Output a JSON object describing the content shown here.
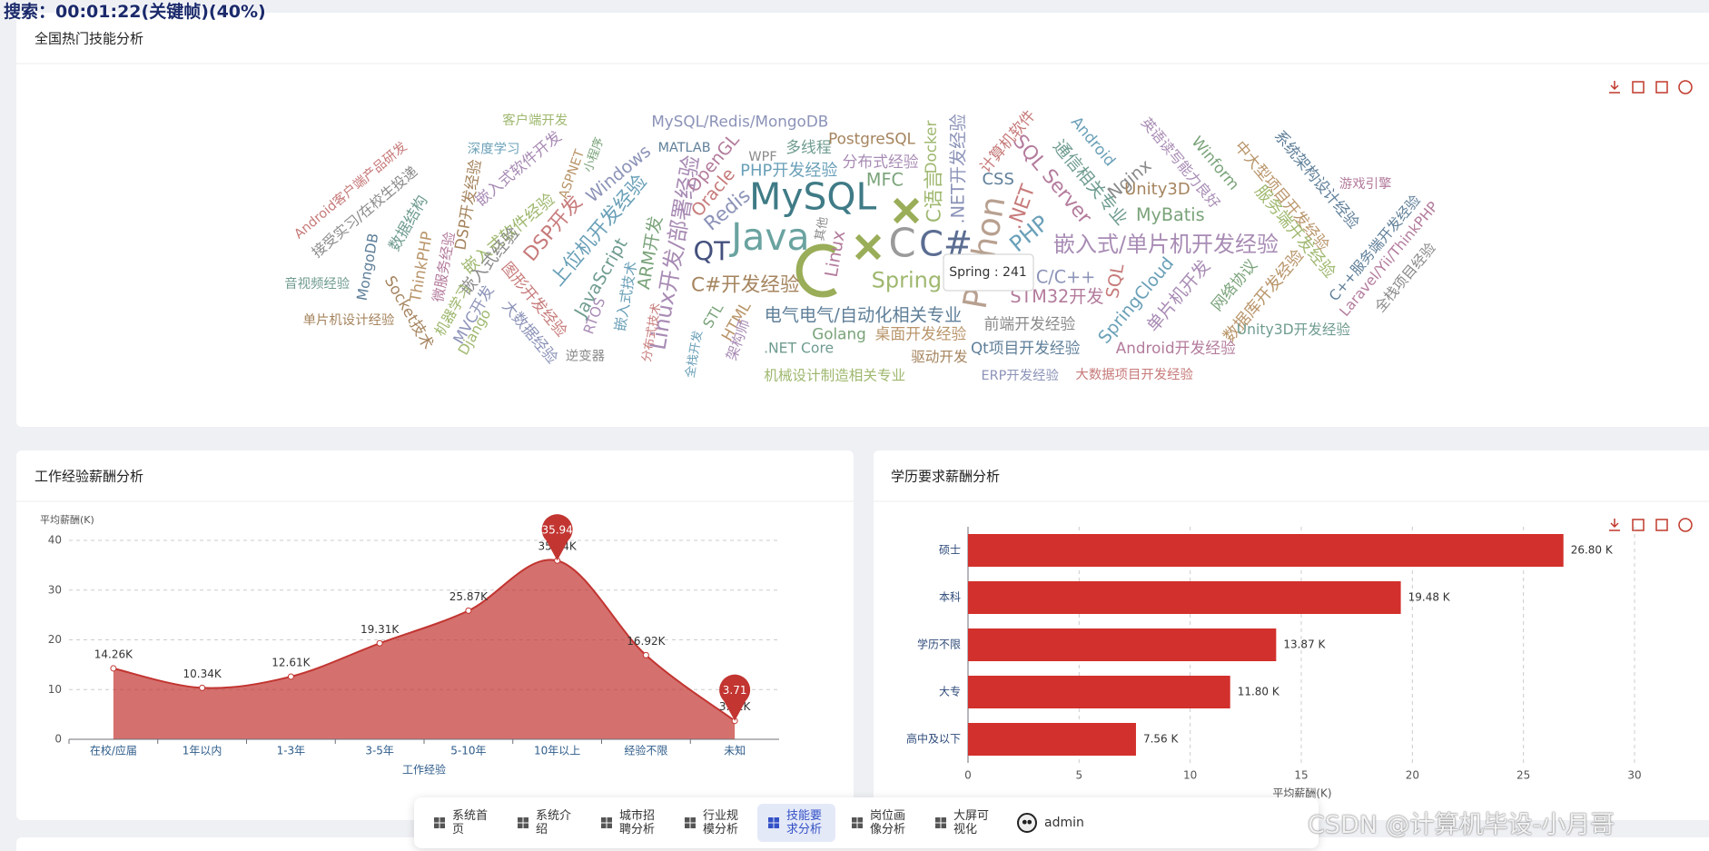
{
  "search_overlay": "搜索：00:01:22(关键帧)(40%)",
  "skills_panel": {
    "title": "全国热门技能分析",
    "words": [
      "客户端开发",
      "MySQL/Redis/MongoDB",
      "Android客户端产品研发",
      "深度学习",
      "嵌入式软件开发",
      "小程序",
      "ASPNET",
      "MATLAB",
      "OpenGL",
      "WPF",
      "多线程",
      "PostgreSQL",
      "Docker",
      ".NET开发经验",
      "计算机软件",
      "Android",
      "英语读写能力良好",
      "Winform",
      "中大型项目开发经验",
      "系统架构设计经验",
      "游戏引擎",
      "接受实习/在校生投递",
      "数据结构",
      "DSP开发经验",
      "嵌入式软件经验",
      "Windows",
      "Oracle",
      "PHP开发经验",
      "分布式经验",
      "MFC",
      "MySQL",
      "CSS",
      "SQL Server",
      "Nginx",
      "通信相关专业",
      "Unity3D",
      "服务端开发经验",
      "Redis",
      "DSP开发",
      "上位机开发经验",
      "Linux开发/部署经验",
      "ARM开发",
      "Java",
      "QT",
      "Linux",
      "其他",
      "C",
      "C#",
      "C语言",
      "Python",
      ".NET",
      "PHP",
      "嵌入式/单片机开发经验",
      "MyBatis",
      "ThinkPHP",
      "MongoDB",
      "微服务经验",
      "嵌入式经验",
      "JavaScript",
      "C#开发经验",
      "Spring",
      "C/C++",
      "SQL",
      "SpringCloud",
      "单片机开发",
      "网络协议",
      "数据库开发经验",
      "C++服务端开发经验",
      "Laravel/Yii/ThinkPHP",
      "全栈项目经验",
      "音视频经验",
      "Socket技术",
      "机器学习",
      "MVC开发",
      "图形开发经验",
      "嵌入式技术",
      "RTOS",
      "STL",
      "HTML",
      "电气电气/自动化相关专业",
      "STM32开发",
      "前端开发经验",
      "Unity3D开发经验",
      "单片机设计经验",
      "Django",
      "大数据经验",
      "分布式技术",
      "全栈开发",
      "架构师",
      "Golang",
      "桌面开发经验",
      "Qt项目开发经验",
      "Android开发经验",
      "逆变器",
      ".NET Core",
      "驱动开发",
      "机械设计制造相关专业",
      "ERP开发经验",
      "大数据项目开发经验"
    ],
    "tooltip": "Spring : 241"
  },
  "experience_panel": {
    "title": "工作经验薪酬分析",
    "chart": {
      "type": "line",
      "area": true,
      "smooth": true,
      "color": "#c23531",
      "categories": [
        "在校/应届",
        "1年以内",
        "1-3年",
        "3-5年",
        "5-10年",
        "10年以上",
        "经验不限",
        "未知"
      ],
      "values": [
        14.26,
        10.34,
        12.61,
        19.31,
        25.87,
        35.94,
        16.92,
        3.71
      ],
      "value_labels": [
        "14.26K",
        "10.34K",
        "12.61K",
        "19.31K",
        "25.87K",
        "35.94K",
        "16.92K",
        "3.71K"
      ],
      "ylim": [
        0,
        40
      ],
      "yticks": [
        0,
        10,
        20,
        30,
        40
      ],
      "y_axis_name": "平均薪酬(K)",
      "x_axis_name": "工作经验"
    }
  },
  "education_panel": {
    "title": "学历要求薪酬分析",
    "chart": {
      "type": "bar",
      "orientation": "horizontal",
      "color": "#d2302c",
      "categories": [
        "硕士",
        "本科",
        "学历不限",
        "大专",
        "高中及以下"
      ],
      "values": [
        26.8,
        19.48,
        13.87,
        11.8,
        7.56
      ],
      "value_labels": [
        "26.80 K",
        "19.48 K",
        "13.87 K",
        "11.80 K",
        "7.56 K"
      ],
      "xlim": [
        0,
        30
      ],
      "xticks": [
        0,
        5,
        10,
        15,
        20,
        25,
        30
      ],
      "x_axis_name": "平均薪酬(K)"
    }
  },
  "nav": {
    "items": [
      "系统首页",
      "系统介绍",
      "城市招聘分析",
      "行业规模分析",
      "技能要求分析",
      "岗位画像分析",
      "大屏可视化"
    ],
    "user": "admin"
  },
  "watermark": "CSDN @计算机毕设-小月哥"
}
